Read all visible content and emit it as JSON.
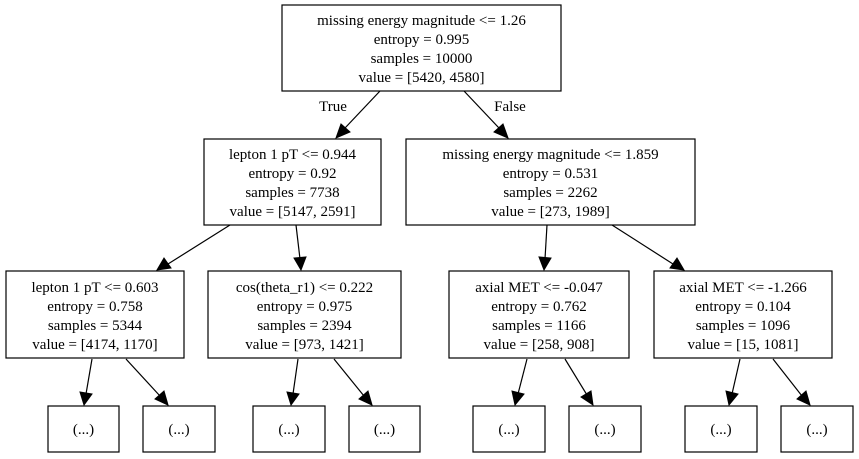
{
  "nodes": {
    "root": {
      "condition": "missing energy magnitude <= 1.26",
      "entropy": "entropy = 0.995",
      "samples": "samples = 10000",
      "value": "value = [5420, 4580]"
    },
    "left": {
      "condition": "lepton 1 pT <= 0.944",
      "entropy": "entropy = 0.92",
      "samples": "samples = 7738",
      "value": "value = [5147, 2591]"
    },
    "right": {
      "condition": "missing energy magnitude <= 1.859",
      "entropy": "entropy = 0.531",
      "samples": "samples = 2262",
      "value": "value = [273, 1989]"
    },
    "ll": {
      "condition": "lepton 1 pT <= 0.603",
      "entropy": "entropy = 0.758",
      "samples": "samples = 5344",
      "value": "value = [4174, 1170]"
    },
    "lr": {
      "condition": "cos(theta_r1) <= 0.222",
      "entropy": "entropy = 0.975",
      "samples": "samples = 2394",
      "value": "value = [973, 1421]"
    },
    "rl": {
      "condition": "axial MET <= -0.047",
      "entropy": "entropy = 0.762",
      "samples": "samples = 1166",
      "value": "value = [258, 908]"
    },
    "rr": {
      "condition": "axial MET <= -1.266",
      "entropy": "entropy = 0.104",
      "samples": "samples = 1096",
      "value": "value = [15, 1081]"
    }
  },
  "truncated_label": "(...)",
  "edge_labels": {
    "true": "True",
    "false": "False"
  }
}
